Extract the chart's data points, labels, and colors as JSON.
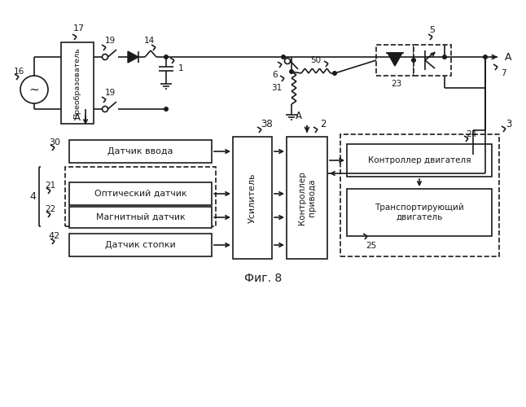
{
  "bg": "#ffffff",
  "lc": "#1a1a1a",
  "lw": 1.2,
  "fig_caption": "Фиг. 8",
  "preobr": "Преобразователь",
  "sensor_input": "Датчик ввода",
  "optical": "Оптический датчик",
  "magnetic": "Магнитный датчик",
  "stack": "Датчик стопки",
  "amplifier": "Усилитель",
  "drive_ctrl": "Контроллер\nпривода",
  "motor_ctrl": "Контроллер двигателя",
  "transport": "Транспортирующий\nдвигатель"
}
